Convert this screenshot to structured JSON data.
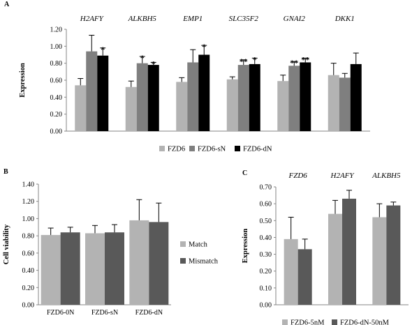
{
  "chart_data": [
    {
      "panel": "A",
      "type": "bar",
      "categories": [
        "H2AFY",
        "ALKBH5",
        "EMP1",
        "SLC35F2",
        "GNAI2",
        "DKK1"
      ],
      "ylabel": "Expression",
      "ylim": [
        0,
        1.2
      ],
      "yticks": [
        "0.00",
        "0.20",
        "0.40",
        "0.60",
        "0.80",
        "1.00",
        "1.20"
      ],
      "legend_position": "bottom",
      "series": [
        {
          "name": "FZD6",
          "color": "#b3b3b3",
          "values": [
            0.54,
            0.52,
            0.58,
            0.61,
            0.59,
            0.66
          ],
          "errors": [
            0.08,
            0.07,
            0.05,
            0.03,
            0.07,
            0.14
          ],
          "sig": [
            "",
            "",
            "",
            "",
            "",
            ""
          ]
        },
        {
          "name": "FZD6-sN",
          "color": "#7f7f7f",
          "values": [
            0.94,
            0.8,
            0.81,
            0.78,
            0.77,
            0.63
          ],
          "errors": [
            0.19,
            0.08,
            0.15,
            0.06,
            0.05,
            0.05
          ],
          "sig": [
            "",
            "*",
            "",
            "**",
            "**",
            ""
          ]
        },
        {
          "name": "FZD6-dN",
          "color": "#000000",
          "values": [
            0.89,
            0.78,
            0.9,
            0.79,
            0.81,
            0.79
          ],
          "errors": [
            0.09,
            0.03,
            0.11,
            0.07,
            0.05,
            0.13
          ],
          "sig": [
            "*",
            "*",
            "*",
            "*",
            "**",
            ""
          ]
        }
      ]
    },
    {
      "panel": "B",
      "type": "bar",
      "categories": [
        "FZD6-0N",
        "FZD6-sN",
        "FZD6-dN"
      ],
      "ylabel": "Cell viability",
      "ylim": [
        0,
        1.4
      ],
      "yticks": [
        "0.00",
        "0.20",
        "0.40",
        "0.60",
        "0.80",
        "1.00",
        "1.20",
        "1.40"
      ],
      "legend_position": "right",
      "series": [
        {
          "name": "Match",
          "color": "#b3b3b3",
          "values": [
            0.81,
            0.83,
            0.98
          ],
          "errors": [
            0.08,
            0.09,
            0.24
          ]
        },
        {
          "name": "Mismatch",
          "color": "#595959",
          "values": [
            0.84,
            0.84,
            0.96
          ],
          "errors": [
            0.06,
            0.09,
            0.22
          ]
        }
      ]
    },
    {
      "panel": "C",
      "type": "bar",
      "categories": [
        "FZD6",
        "H2AFY",
        "ALKBH5"
      ],
      "ylabel": "Expression",
      "ylim": [
        0,
        0.7
      ],
      "yticks": [
        "0.00",
        "0.10",
        "0.20",
        "0.30",
        "0.40",
        "0.50",
        "0.60",
        "0.70"
      ],
      "legend_position": "bottom",
      "series": [
        {
          "name": "FZD6-5nM",
          "color": "#b3b3b3",
          "values": [
            0.39,
            0.54,
            0.52
          ],
          "errors": [
            0.13,
            0.08,
            0.08
          ]
        },
        {
          "name": "FZD6-dN-50nM",
          "color": "#595959",
          "values": [
            0.33,
            0.63,
            0.59
          ],
          "errors": [
            0.06,
            0.05,
            0.02
          ]
        }
      ]
    }
  ]
}
